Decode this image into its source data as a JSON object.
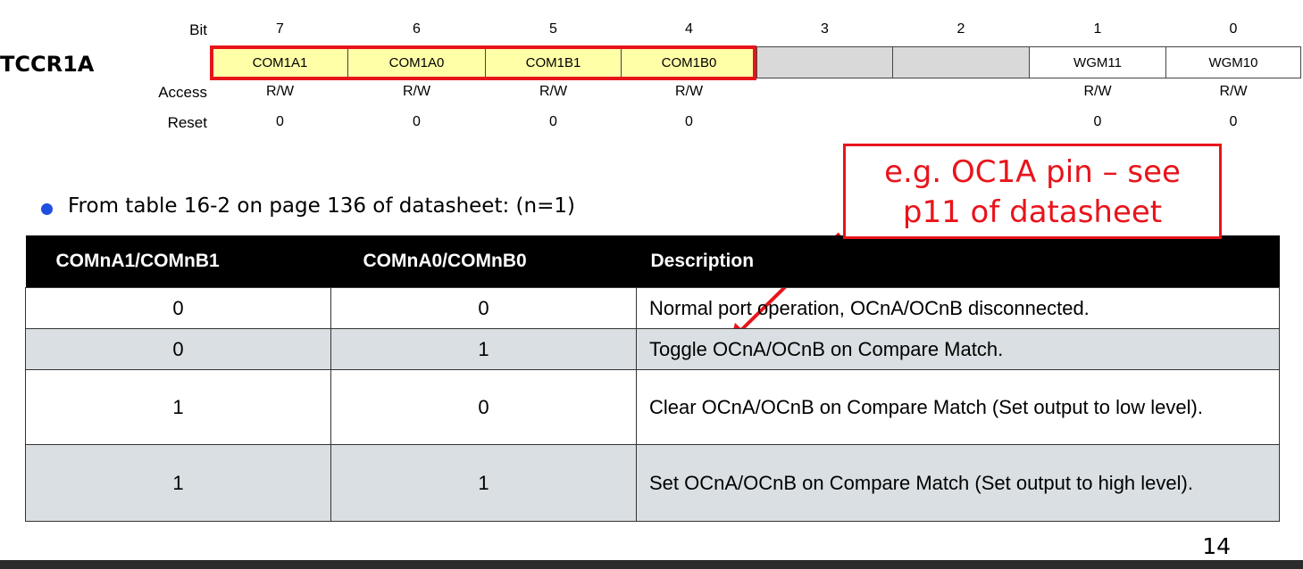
{
  "register": {
    "name": "TCCR1A",
    "row_labels": {
      "bit": "Bit",
      "access": "Access",
      "reset": "Reset"
    },
    "bits": [
      {
        "bit": "7",
        "name": "COM1A1",
        "access": "R/W",
        "reset": "0",
        "fill": "yellow"
      },
      {
        "bit": "6",
        "name": "COM1A0",
        "access": "R/W",
        "reset": "0",
        "fill": "yellow"
      },
      {
        "bit": "5",
        "name": "COM1B1",
        "access": "R/W",
        "reset": "0",
        "fill": "yellow"
      },
      {
        "bit": "4",
        "name": "COM1B0",
        "access": "R/W",
        "reset": "0",
        "fill": "yellow"
      },
      {
        "bit": "3",
        "name": "",
        "access": "",
        "reset": "",
        "fill": "gray"
      },
      {
        "bit": "2",
        "name": "",
        "access": "",
        "reset": "",
        "fill": "gray"
      },
      {
        "bit": "1",
        "name": "WGM11",
        "access": "R/W",
        "reset": "0",
        "fill": "white"
      },
      {
        "bit": "0",
        "name": "WGM10",
        "access": "R/W",
        "reset": "0",
        "fill": "white"
      }
    ]
  },
  "bullet": {
    "text": "From table 16-2 on page 136 of datasheet: (n=1)",
    "icon": "bullet-dot-icon"
  },
  "callout": {
    "line1": "e.g. OC1A pin – see",
    "line2": "p11 of datasheet"
  },
  "table": {
    "headers": [
      "COMnA1/COMnB1",
      "COMnA0/COMnB0",
      "Description"
    ],
    "rows": [
      {
        "c1": "0",
        "c2": "0",
        "desc": "Normal port operation, OCnA/OCnB disconnected."
      },
      {
        "c1": "0",
        "c2": "1",
        "desc": "Toggle OCnA/OCnB on Compare Match."
      },
      {
        "c1": "1",
        "c2": "0",
        "desc": "Clear OCnA/OCnB on Compare Match (Set output to low level)."
      },
      {
        "c1": "1",
        "c2": "1",
        "desc": "Set OCnA/OCnB on Compare Match (Set output to high level)."
      }
    ]
  },
  "page_number": "14",
  "colors": {
    "highlight": "#e8141b",
    "bit_fill": "#ffffa8",
    "reserved_fill": "#d9d9d9",
    "row_shade": "#d9dfe2",
    "bullet": "#1f4fe0"
  }
}
